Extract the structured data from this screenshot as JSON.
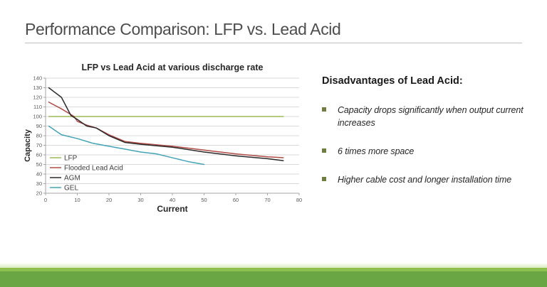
{
  "slide": {
    "title": "Performance Comparison: LFP vs. Lead Acid"
  },
  "chart_data": {
    "type": "line",
    "title": "LFP vs Lead Acid at various discharge rate",
    "xlabel": "Current",
    "ylabel": "Capacity",
    "xlim": [
      0,
      80
    ],
    "ylim": [
      20,
      140
    ],
    "x_ticks": [
      0,
      10,
      20,
      30,
      40,
      50,
      60,
      70,
      80
    ],
    "y_ticks": [
      20,
      30,
      40,
      50,
      60,
      70,
      80,
      90,
      100,
      110,
      120,
      130,
      140
    ],
    "grid": "horizontal",
    "grid_color": "#d9d9d9",
    "axis_color": "#a6a6a6",
    "tick_label_color": "#595959",
    "legend_position": "inside-bottom-left",
    "series": [
      {
        "name": "LFP",
        "color": "#9bbb59",
        "points": [
          [
            1,
            100
          ],
          [
            75,
            100
          ]
        ]
      },
      {
        "name": "Flooded Lead Acid",
        "color": "#b04a45",
        "points": [
          [
            1,
            115
          ],
          [
            5,
            108
          ],
          [
            9,
            100
          ],
          [
            10,
            95
          ],
          [
            13,
            91
          ],
          [
            16,
            88
          ],
          [
            20,
            81
          ],
          [
            25,
            74
          ],
          [
            30,
            72
          ],
          [
            40,
            69
          ],
          [
            50,
            65
          ],
          [
            60,
            61
          ],
          [
            70,
            58
          ],
          [
            75,
            57
          ]
        ]
      },
      {
        "name": "AGM",
        "color": "#2b2b2b",
        "points": [
          [
            1,
            130
          ],
          [
            5,
            120
          ],
          [
            8,
            101
          ],
          [
            10,
            97
          ],
          [
            13,
            90
          ],
          [
            16,
            88
          ],
          [
            20,
            80
          ],
          [
            25,
            73
          ],
          [
            30,
            71
          ],
          [
            40,
            68
          ],
          [
            50,
            63
          ],
          [
            60,
            59
          ],
          [
            70,
            56
          ],
          [
            75,
            54
          ]
        ]
      },
      {
        "name": "GEL",
        "color": "#44a3b8",
        "points": [
          [
            1,
            90
          ],
          [
            5,
            81
          ],
          [
            10,
            77
          ],
          [
            15,
            72
          ],
          [
            20,
            69
          ],
          [
            25,
            66
          ],
          [
            30,
            63
          ],
          [
            35,
            61
          ],
          [
            40,
            57
          ],
          [
            45,
            53
          ],
          [
            50,
            50
          ]
        ]
      }
    ]
  },
  "disadvantages": {
    "heading": "Disadvantages of Lead Acid:",
    "bullets": [
      "Capacity drops significantly when output current increases",
      "6 times more space",
      "Higher cable cost and longer installation time"
    ]
  },
  "theme": {
    "title_color": "#4d4d4d",
    "rule_color": "#bfbfbf",
    "bullet_color": "#6f7d43",
    "accent_stripe": "#8cbf4d",
    "accent_bar": "#6ba644"
  }
}
